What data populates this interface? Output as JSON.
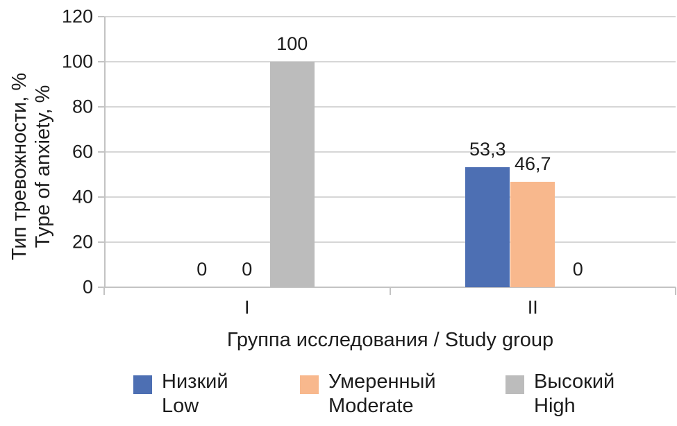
{
  "figure": {
    "background": "#ffffff",
    "text_color": "#1c1c1c"
  },
  "chart_data": {
    "type": "bar",
    "title": "",
    "categories": [
      "I",
      "II"
    ],
    "series": [
      {
        "name_ru": "Низкий",
        "name_en": "Low",
        "color": "#4D6FB3",
        "values": [
          0,
          53.3
        ],
        "value_labels": [
          "0",
          "53,3"
        ]
      },
      {
        "name_ru": "Умеренный",
        "name_en": "Moderate",
        "color": "#F8B88D",
        "values": [
          0,
          46.7
        ],
        "value_labels": [
          "0",
          "46,7"
        ]
      },
      {
        "name_ru": "Высокий",
        "name_en": "High",
        "color": "#BCBCBC",
        "values": [
          100,
          0
        ],
        "value_labels": [
          "100",
          "0"
        ]
      }
    ],
    "xlabel": "Группа исследования / Study group",
    "ylabel_line1": "Тип тревожности, %",
    "ylabel_line2": "Type of anxiety, %",
    "ylim": [
      0,
      120
    ],
    "yticks": [
      {
        "value": 0,
        "label": "0"
      },
      {
        "value": 20,
        "label": "20"
      },
      {
        "value": 40,
        "label": "40"
      },
      {
        "value": 60,
        "label": "60"
      },
      {
        "value": 80,
        "label": "80"
      },
      {
        "value": 100,
        "label": "100"
      },
      {
        "value": 120,
        "label": "120"
      }
    ],
    "grid": true,
    "legend_position": "bottom",
    "gridline_color": "#D6D6D6",
    "axis_color": "#C3C3C3"
  }
}
